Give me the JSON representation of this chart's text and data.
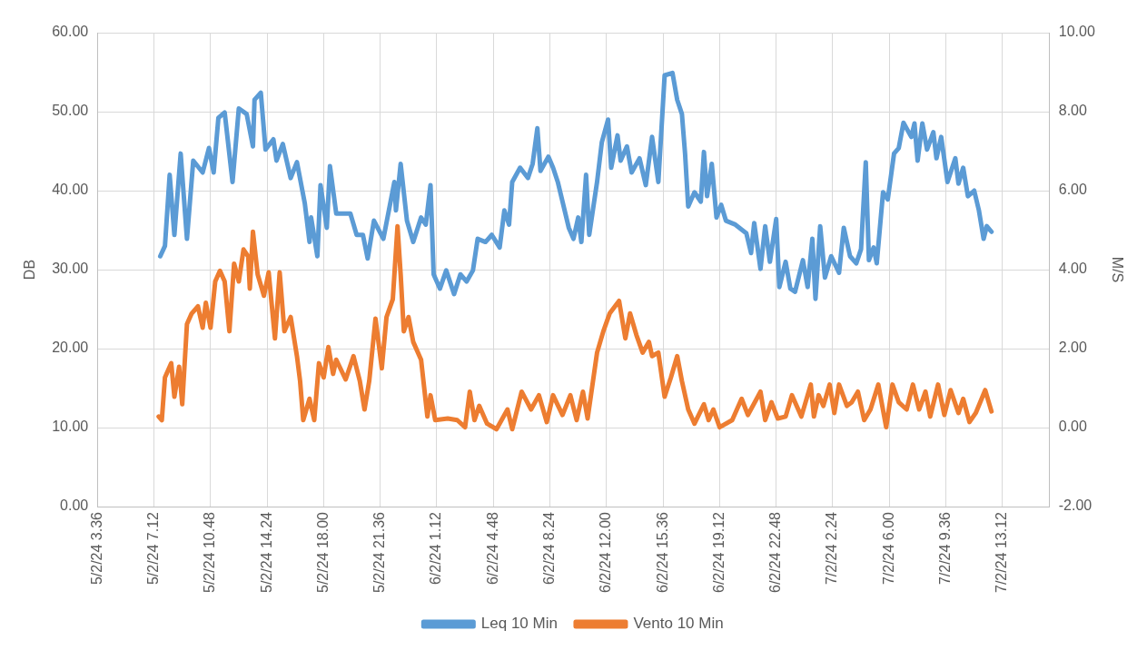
{
  "chart_data": {
    "type": "line",
    "ylabel": "DB",
    "y2label": "M/S",
    "marker": "none",
    "grid": true,
    "legend": "bottom",
    "xlim": [
      "--02-05T03:36",
      "--02-07T16:12"
    ],
    "xticks": [
      {
        "value": "--02-05T03:36",
        "label": "5/2/24 3.36"
      },
      {
        "value": "--02-05T07:12",
        "label": "5/2/24 7.12"
      },
      {
        "value": "--02-05T10:48",
        "label": "5/2/24 10.48"
      },
      {
        "value": "--02-05T14:24",
        "label": "5/2/24 14.24"
      },
      {
        "value": "--02-05T18:00",
        "label": "5/2/24 18.00"
      },
      {
        "value": "--02-05T21:36",
        "label": "5/2/24 21.36"
      },
      {
        "value": "--02-06T01:12",
        "label": "6/2/24 1.12"
      },
      {
        "value": "--02-06T04:48",
        "label": "6/2/24 4.48"
      },
      {
        "value": "--02-06T08:24",
        "label": "6/2/24 8.24"
      },
      {
        "value": "--02-06T12:00",
        "label": "6/2/24 12.00"
      },
      {
        "value": "--02-06T15:36",
        "label": "6/2/24 15.36"
      },
      {
        "value": "--02-06T19:12",
        "label": "6/2/24 19.12"
      },
      {
        "value": "--02-06T22:48",
        "label": "6/2/24 22.48"
      },
      {
        "value": "--02-07T02:24",
        "label": "7/2/24 2.24"
      },
      {
        "value": "--02-07T06:00",
        "label": "7/2/24 6.00"
      },
      {
        "value": "--02-07T09:36",
        "label": "7/2/24 9.36"
      },
      {
        "value": "--02-07T13:12",
        "label": "7/2/24 13.12"
      }
    ],
    "ylim": [
      0,
      60
    ],
    "yticks": [
      {
        "value": 0,
        "label": "0.00"
      },
      {
        "value": 10,
        "label": "10.00"
      },
      {
        "value": 20,
        "label": "20.00"
      },
      {
        "value": 30,
        "label": "30.00"
      },
      {
        "value": 40,
        "label": "40.00"
      },
      {
        "value": 50,
        "label": "50.00"
      },
      {
        "value": 60,
        "label": "60.00"
      }
    ],
    "y2lim": [
      -2,
      10
    ],
    "y2ticks": [
      {
        "value": -2,
        "label": "-2.00"
      },
      {
        "value": 0,
        "label": "0.00"
      },
      {
        "value": 2,
        "label": "2.00"
      },
      {
        "value": 4,
        "label": "4.00"
      },
      {
        "value": 6,
        "label": "6.00"
      },
      {
        "value": 8,
        "label": "8.00"
      },
      {
        "value": 10,
        "label": "10.00"
      }
    ],
    "series": [
      {
        "name": "Leq 10 Min",
        "color": "#5b9bd5",
        "x": [
          "--02-05T07:36",
          "--02-05T07:54",
          "--02-05T08:12",
          "--02-05T08:30",
          "--02-05T08:54",
          "--02-05T09:18",
          "--02-05T09:42",
          "--02-05T10:18",
          "--02-05T10:42",
          "--02-05T11:00",
          "--02-05T11:18",
          "--02-05T11:42",
          "--02-05T12:12",
          "--02-05T12:36",
          "--02-05T13:06",
          "--02-05T13:30",
          "--02-05T13:36",
          "--02-05T14:00",
          "--02-05T14:18",
          "--02-05T14:48",
          "--02-05T15:00",
          "--02-05T15:24",
          "--02-05T15:54",
          "--02-05T16:18",
          "--02-05T16:48",
          "--02-05T17:06",
          "--02-05T17:12",
          "--02-05T17:36",
          "--02-05T17:48",
          "--02-05T18:12",
          "--02-05T18:24",
          "--02-05T18:48",
          "--02-05T19:42",
          "--02-05T20:06",
          "--02-05T20:30",
          "--02-05T20:48",
          "--02-05T21:12",
          "--02-05T21:48",
          "--02-05T22:30",
          "--02-05T22:36",
          "--02-05T22:54",
          "--02-05T23:18",
          "--02-05T23:42",
          "--02-06T00:12",
          "--02-06T00:30",
          "--02-06T00:48",
          "--02-06T01:00",
          "--02-06T01:24",
          "--02-06T01:48",
          "--02-06T02:18",
          "--02-06T02:42",
          "--02-06T03:06",
          "--02-06T03:30",
          "--02-06T03:48",
          "--02-06T04:18",
          "--02-06T04:42",
          "--02-06T05:12",
          "--02-06T05:30",
          "--02-06T05:48",
          "--02-06T06:00",
          "--02-06T06:30",
          "--02-06T07:00",
          "--02-06T07:18",
          "--02-06T07:36",
          "--02-06T07:48",
          "--02-06T08:18",
          "--02-06T08:36",
          "--02-06T08:54",
          "--02-06T09:36",
          "--02-06T09:54",
          "--02-06T10:12",
          "--02-06T10:24",
          "--02-06T10:42",
          "--02-06T10:54",
          "--02-06T11:24",
          "--02-06T11:42",
          "--02-06T12:06",
          "--02-06T12:18",
          "--02-06T12:42",
          "--02-06T12:54",
          "--02-06T13:18",
          "--02-06T13:36",
          "--02-06T14:06",
          "--02-06T14:30",
          "--02-06T14:54",
          "--02-06T15:18",
          "--02-06T15:42",
          "--02-06T16:12",
          "--02-06T16:30",
          "--02-06T16:48",
          "--02-06T17:00",
          "--02-06T17:12",
          "--02-06T17:36",
          "--02-06T18:00",
          "--02-06T18:12",
          "--02-06T18:24",
          "--02-06T18:42",
          "--02-06T19:00",
          "--02-06T19:18",
          "--02-06T19:36",
          "--02-06T20:12",
          "--02-06T20:54",
          "--02-06T21:12",
          "--02-06T21:24",
          "--02-06T21:48",
          "--02-06T22:06",
          "--02-06T22:24",
          "--02-06T22:48",
          "--02-06T23:00",
          "--02-06T23:24",
          "--02-06T23:42",
          "--02-07T00:00",
          "--02-07T00:30",
          "--02-07T00:48",
          "--02-07T01:06",
          "--02-07T01:18",
          "--02-07T01:36",
          "--02-07T01:54",
          "--02-07T02:18",
          "--02-07T02:48",
          "--02-07T03:06",
          "--02-07T03:30",
          "--02-07T03:54",
          "--02-07T04:12",
          "--02-07T04:30",
          "--02-07T04:42",
          "--02-07T05:00",
          "--02-07T05:12",
          "--02-07T05:36",
          "--02-07T05:54",
          "--02-07T06:18",
          "--02-07T06:36",
          "--02-07T06:54",
          "--02-07T07:24",
          "--02-07T07:36",
          "--02-07T07:48",
          "--02-07T08:06",
          "--02-07T08:24",
          "--02-07T08:48",
          "--02-07T09:00",
          "--02-07T09:18",
          "--02-07T09:42",
          "--02-07T10:12",
          "--02-07T10:24",
          "--02-07T10:42",
          "--02-07T11:00",
          "--02-07T11:24",
          "--02-07T11:42",
          "--02-07T12:00",
          "--02-07T12:12",
          "--02-07T12:30"
        ],
        "values": [
          31.7,
          33.0,
          42.0,
          34.4,
          44.7,
          33.9,
          43.8,
          42.3,
          45.4,
          42.3,
          49.2,
          49.9,
          41.1,
          50.4,
          49.7,
          45.6,
          51.5,
          52.4,
          45.2,
          46.5,
          43.8,
          45.9,
          41.6,
          43.6,
          38.4,
          33.5,
          36.6,
          31.7,
          40.7,
          35.3,
          43.1,
          37.1,
          37.1,
          34.4,
          34.4,
          31.4,
          36.2,
          33.9,
          41.1,
          37.5,
          43.4,
          36.2,
          33.5,
          36.6,
          35.7,
          40.7,
          29.4,
          27.6,
          29.9,
          26.9,
          29.4,
          28.5,
          29.9,
          33.9,
          33.5,
          34.4,
          32.8,
          37.5,
          35.7,
          41.1,
          42.9,
          41.6,
          43.4,
          47.9,
          42.5,
          44.3,
          42.9,
          41.1,
          35.3,
          33.9,
          36.6,
          33.5,
          42.0,
          34.4,
          41.1,
          46.1,
          49.0,
          42.9,
          47.0,
          43.8,
          45.6,
          42.3,
          44.1,
          40.7,
          46.8,
          41.1,
          54.6,
          54.9,
          51.5,
          49.7,
          44.7,
          38.0,
          39.8,
          38.6,
          44.9,
          39.3,
          43.4,
          36.6,
          38.2,
          36.2,
          35.7,
          34.6,
          32.1,
          35.9,
          30.1,
          35.5,
          31.0,
          36.4,
          27.8,
          31.0,
          27.6,
          27.2,
          31.2,
          27.8,
          33.9,
          26.3,
          35.5,
          29.0,
          31.7,
          29.6,
          35.3,
          31.7,
          30.8,
          32.6,
          43.6,
          31.2,
          32.8,
          30.8,
          39.8,
          38.9,
          44.7,
          45.4,
          48.6,
          46.8,
          48.5,
          43.8,
          48.5,
          45.2,
          47.4,
          44.1,
          46.8,
          41.1,
          44.1,
          40.9,
          42.9,
          39.3,
          40.0,
          37.5,
          33.9,
          35.5,
          34.8
        ]
      },
      {
        "name": "Vento 10 Min",
        "color": "#ed7d31",
        "axis": "y2",
        "x": [
          "--02-05T07:30",
          "--02-05T07:42",
          "--02-05T07:54",
          "--02-05T08:18",
          "--02-05T08:30",
          "--02-05T08:48",
          "--02-05T09:00",
          "--02-05T09:18",
          "--02-05T09:36",
          "--02-05T10:00",
          "--02-05T10:18",
          "--02-05T10:30",
          "--02-05T10:48",
          "--02-05T11:06",
          "--02-05T11:24",
          "--02-05T11:42",
          "--02-05T12:00",
          "--02-05T12:18",
          "--02-05T12:36",
          "--02-05T12:54",
          "--02-05T13:12",
          "--02-05T13:18",
          "--02-05T13:30",
          "--02-05T13:48",
          "--02-05T14:12",
          "--02-05T14:30",
          "--02-05T14:54",
          "--02-05T15:12",
          "--02-05T15:30",
          "--02-05T15:54",
          "--02-05T16:18",
          "--02-05T16:30",
          "--02-05T16:42",
          "--02-05T17:06",
          "--02-05T17:24",
          "--02-05T17:42",
          "--02-05T18:00",
          "--02-05T18:18",
          "--02-05T18:36",
          "--02-05T18:48",
          "--02-05T19:24",
          "--02-05T19:54",
          "--02-05T20:18",
          "--02-05T20:36",
          "--02-05T20:54",
          "--02-05T21:18",
          "--02-05T21:42",
          "--02-05T22:00",
          "--02-05T22:24",
          "--02-05T22:42",
          "--02-05T22:54",
          "--02-05T23:06",
          "--02-05T23:24",
          "--02-05T23:42",
          "--02-06T00:12",
          "--02-06T00:36",
          "--02-06T00:48",
          "--02-06T01:06",
          "--02-06T01:54",
          "--02-06T02:30",
          "--02-06T03:00",
          "--02-06T03:18",
          "--02-06T03:36",
          "--02-06T03:54",
          "--02-06T04:24",
          "--02-06T05:00",
          "--02-06T05:42",
          "--02-06T06:00",
          "--02-06T06:36",
          "--02-06T07:12",
          "--02-06T07:42",
          "--02-06T08:12",
          "--02-06T08:36",
          "--02-06T09:12",
          "--02-06T09:42",
          "--02-06T10:06",
          "--02-06T10:30",
          "--02-06T10:48",
          "--02-06T11:24",
          "--02-06T11:48",
          "--02-06T12:12",
          "--02-06T12:48",
          "--02-06T13:12",
          "--02-06T13:30",
          "--02-06T13:54",
          "--02-06T14:18",
          "--02-06T14:42",
          "--02-06T14:54",
          "--02-06T15:18",
          "--02-06T15:42",
          "--02-06T16:06",
          "--02-06T16:30",
          "--02-06T16:48",
          "--02-06T17:12",
          "--02-06T17:36",
          "--02-06T18:12",
          "--02-06T18:30",
          "--02-06T18:48",
          "--02-06T19:12",
          "--02-06T20:00",
          "--02-06T20:36",
          "--02-06T21:00",
          "--02-06T21:48",
          "--02-06T22:06",
          "--02-06T22:30",
          "--02-06T22:54",
          "--02-06T23:24",
          "--02-06T23:48",
          "--02-07T00:24",
          "--02-07T01:00",
          "--02-07T01:12",
          "--02-07T01:30",
          "--02-07T01:48",
          "--02-07T02:12",
          "--02-07T02:30",
          "--02-07T02:48",
          "--02-07T03:18",
          "--02-07T03:36",
          "--02-07T04:00",
          "--02-07T04:24",
          "--02-07T04:48",
          "--02-07T05:18",
          "--02-07T05:48",
          "--02-07T06:12",
          "--02-07T06:36",
          "--02-07T07:06",
          "--02-07T07:30",
          "--02-07T07:54",
          "--02-07T08:18",
          "--02-07T08:36",
          "--02-07T09:06",
          "--02-07T09:30",
          "--02-07T09:54",
          "--02-07T10:24",
          "--02-07T10:42",
          "--02-07T11:06",
          "--02-07T11:30",
          "--02-07T12:06",
          "--02-07T12:30"
        ],
        "values": [
          0.28,
          0.19,
          1.27,
          1.63,
          0.78,
          1.54,
          0.59,
          2.62,
          2.89,
          3.07,
          2.53,
          3.16,
          2.53,
          3.7,
          3.97,
          3.7,
          2.44,
          4.15,
          3.7,
          4.51,
          4.33,
          3.52,
          4.96,
          3.88,
          3.34,
          3.93,
          2.26,
          3.93,
          2.44,
          2.8,
          1.81,
          1.18,
          0.19,
          0.73,
          0.19,
          1.63,
          1.27,
          2.04,
          1.36,
          1.72,
          1.22,
          1.81,
          1.18,
          0.46,
          1.18,
          2.76,
          1.5,
          2.8,
          3.25,
          5.1,
          3.88,
          2.44,
          2.8,
          2.17,
          1.72,
          0.28,
          0.82,
          0.19,
          0.23,
          0.19,
          0.01,
          0.91,
          0.19,
          0.55,
          0.1,
          -0.04,
          0.46,
          -0.04,
          0.91,
          0.46,
          0.82,
          0.14,
          0.82,
          0.32,
          0.82,
          0.19,
          0.91,
          0.23,
          1.9,
          2.44,
          2.89,
          3.21,
          2.26,
          2.89,
          2.35,
          1.9,
          2.17,
          1.81,
          1.9,
          0.78,
          1.27,
          1.81,
          1.18,
          0.46,
          0.1,
          0.59,
          0.19,
          0.46,
          0.01,
          0.19,
          0.73,
          0.32,
          0.91,
          0.19,
          0.64,
          0.23,
          0.28,
          0.82,
          0.28,
          1.09,
          0.28,
          0.82,
          0.55,
          1.09,
          0.37,
          1.09,
          0.55,
          0.64,
          0.91,
          0.19,
          0.46,
          1.09,
          0.01,
          1.09,
          0.64,
          0.46,
          1.09,
          0.46,
          0.91,
          0.28,
          1.09,
          0.32,
          0.95,
          0.37,
          0.73,
          0.14,
          0.37,
          0.95,
          0.41
        ]
      }
    ]
  }
}
